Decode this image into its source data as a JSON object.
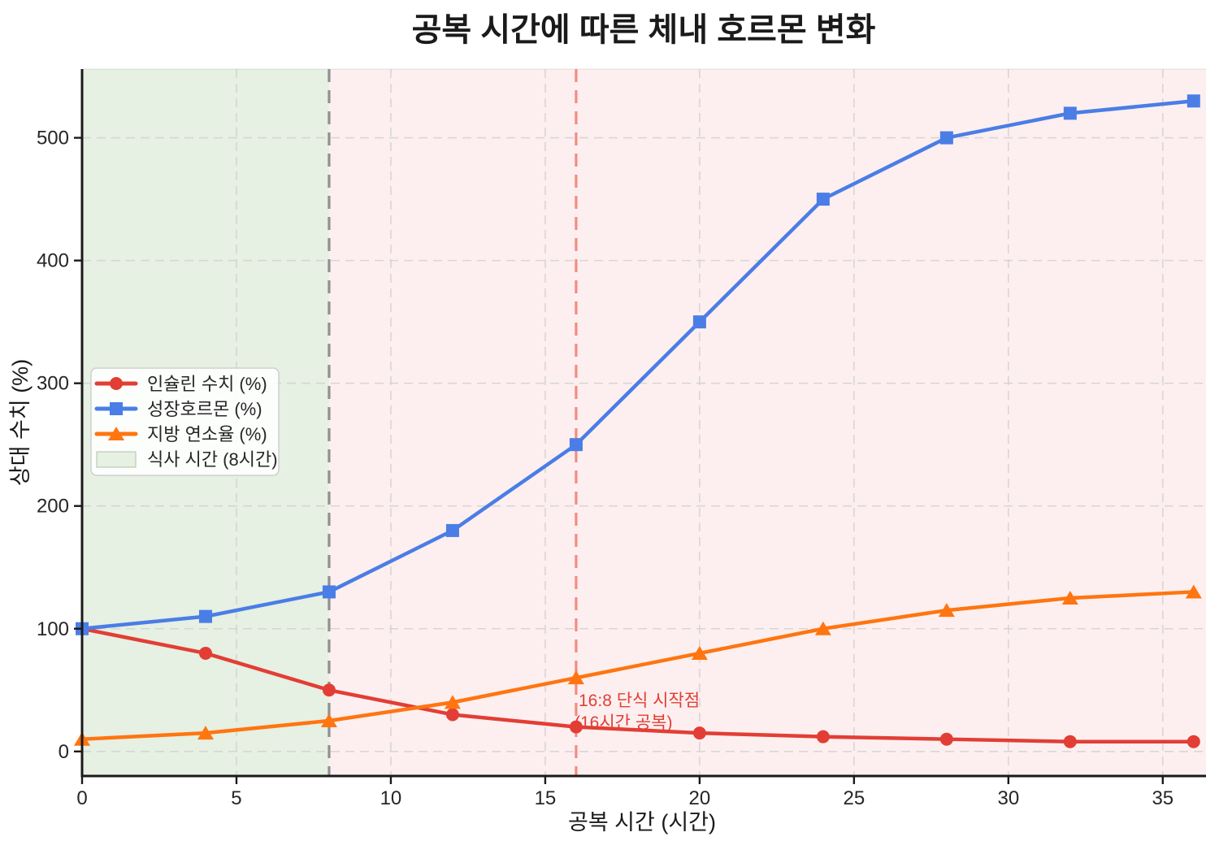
{
  "title": "공복 시간에 따른 체내 호르몬 변화",
  "chart_data": {
    "type": "line",
    "title": "공복 시간에 따른 체내 호르몬 변화",
    "xlabel": "공복 시간 (시간)",
    "ylabel": "상대 수치 (%)",
    "x": [
      0,
      4,
      8,
      12,
      16,
      20,
      24,
      28,
      32,
      36
    ],
    "series": [
      {
        "slug": "insulin",
        "name": "인슐린 수치 (%)",
        "marker": "circle",
        "color": "#e23e35",
        "values": [
          100,
          80,
          50,
          30,
          20,
          15,
          12,
          10,
          8,
          8
        ]
      },
      {
        "slug": "growth-hormone",
        "name": "성장호르몬 (%)",
        "marker": "square",
        "color": "#4a7de6",
        "values": [
          100,
          110,
          130,
          180,
          250,
          350,
          450,
          500,
          520,
          530
        ]
      },
      {
        "slug": "fat-burning",
        "name": "지방 연소율 (%)",
        "marker": "triangle",
        "color": "#ff7510",
        "values": [
          10,
          15,
          25,
          40,
          60,
          80,
          100,
          115,
          125,
          130
        ]
      }
    ],
    "meal_window": {
      "label": "식사 시간 (8시간)",
      "from_hour": 0,
      "to_hour": 8,
      "fill": "#e6f0e3"
    },
    "fasting_region_fill": "#fdefef",
    "vlines": [
      {
        "x": 8,
        "color": "#909090",
        "style": "dashed"
      },
      {
        "x": 16,
        "color": "#f28c84",
        "style": "dashed"
      }
    ],
    "annotation": {
      "line1": "16:8 단식 시작점",
      "line2": "(16시간 공복)",
      "x_hour": 16,
      "color": "#e23e35"
    },
    "axes": {
      "xticks": [
        0,
        5,
        10,
        15,
        20,
        25,
        30,
        35
      ],
      "yticks": [
        0,
        100,
        200,
        300,
        400,
        500
      ],
      "xlim": [
        0,
        36.4
      ],
      "ylim": [
        -20,
        556
      ],
      "grid": true
    },
    "legend": {
      "position": "center-left",
      "entries": [
        "인슐린 수치 (%)",
        "성장호르몬 (%)",
        "지방 연소율 (%)",
        "식사 시간 (8시간)"
      ]
    }
  }
}
